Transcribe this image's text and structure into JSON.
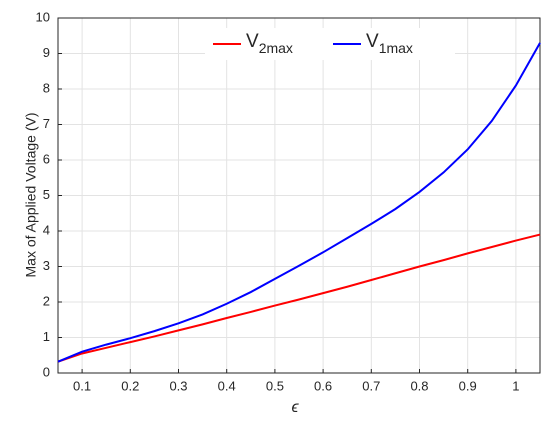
{
  "chart_data": {
    "type": "line",
    "xlabel": "ϵ",
    "ylabel": "Max of Applied Voltage (V)",
    "x": [
      0.05,
      0.1,
      0.15,
      0.2,
      0.25,
      0.3,
      0.35,
      0.4,
      0.45,
      0.5,
      0.55,
      0.6,
      0.65,
      0.7,
      0.75,
      0.8,
      0.85,
      0.9,
      0.95,
      1.0,
      1.05
    ],
    "series": [
      {
        "name": "V2max",
        "color": "#ff0000",
        "values": [
          0.32,
          0.55,
          0.71,
          0.87,
          1.03,
          1.2,
          1.37,
          1.55,
          1.72,
          1.9,
          2.07,
          2.25,
          2.43,
          2.62,
          2.81,
          3.0,
          3.18,
          3.37,
          3.55,
          3.73,
          3.9
        ]
      },
      {
        "name": "V1max",
        "color": "#0000ff",
        "values": [
          0.32,
          0.6,
          0.8,
          0.98,
          1.18,
          1.4,
          1.65,
          1.95,
          2.28,
          2.65,
          3.02,
          3.4,
          3.8,
          4.2,
          4.62,
          5.1,
          5.65,
          6.3,
          7.1,
          8.1,
          9.3
        ]
      }
    ],
    "xlim": [
      0.05,
      1.05
    ],
    "xticks": [
      0.1,
      0.2,
      0.3,
      0.4,
      0.5,
      0.6,
      0.7,
      0.8,
      0.9,
      1
    ],
    "ylim": [
      0,
      10
    ],
    "yticks": [
      0,
      1,
      2,
      3,
      4,
      5,
      6,
      7,
      8,
      9,
      10
    ],
    "grid": true,
    "legend": "top"
  }
}
